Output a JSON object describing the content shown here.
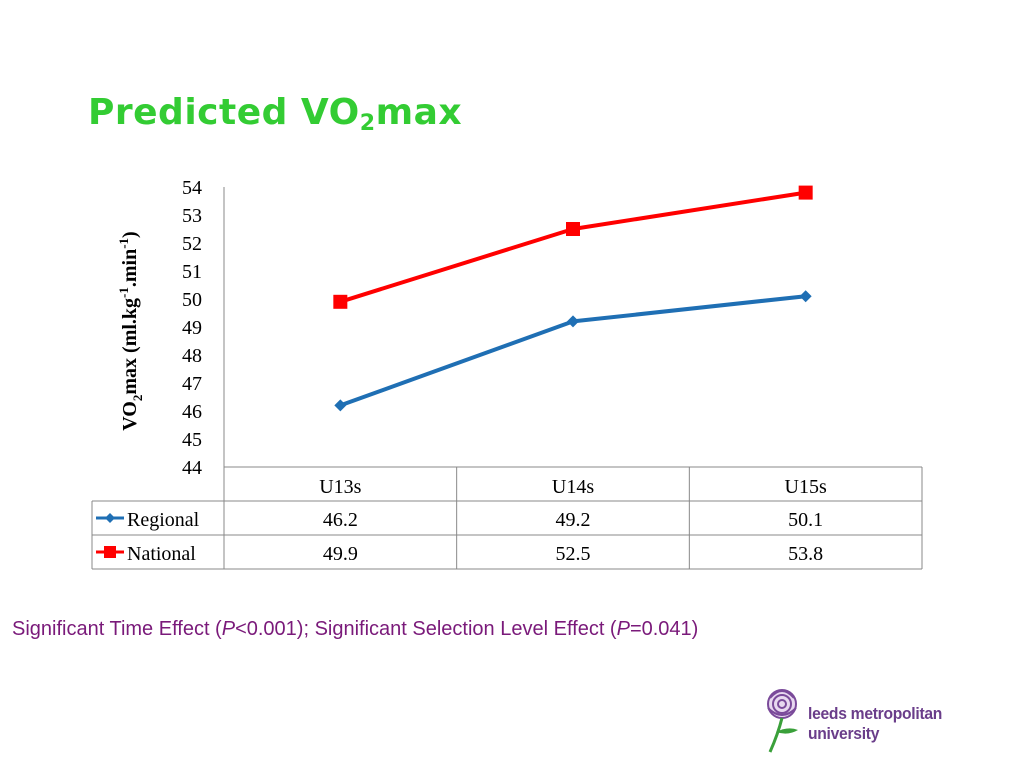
{
  "title": {
    "text_main": "Predicted VO",
    "text_sub": "2",
    "text_tail": "max"
  },
  "footer": {
    "sig_text_1": "Significant Time Effect (",
    "sig_p1_symbol": "P",
    "sig_text_2": "<0.001); Significant Selection Level Effect (",
    "sig_p2_symbol": "P",
    "sig_text_3": "=0.041)"
  },
  "logo": {
    "text": "leeds metropolitan university",
    "icon": "rose-icon"
  },
  "chart_data": {
    "type": "line",
    "categories": [
      "U13s",
      "U14s",
      "U15s"
    ],
    "series": [
      {
        "name": "Regional",
        "values": [
          46.2,
          49.2,
          50.1
        ],
        "color": "#1f6fb4",
        "marker": "diamond"
      },
      {
        "name": "National",
        "values": [
          49.9,
          52.5,
          53.8
        ],
        "color": "#ff0000",
        "marker": "square"
      }
    ],
    "ylabel": {
      "main": "VO",
      "sub": "2",
      "mid": "max (ml.kg",
      "sup1": "-1",
      "mid2": ".min",
      "sup2": "-1",
      "end": ")"
    },
    "ylim": [
      44,
      54
    ],
    "yticks": [
      "44",
      "45",
      "46",
      "47",
      "48",
      "49",
      "50",
      "51",
      "52",
      "53",
      "54"
    ],
    "data_table": true,
    "table_values": [
      [
        "46.2",
        "49.2",
        "50.1"
      ],
      [
        "49.9",
        "52.5",
        "53.8"
      ]
    ],
    "grid": false,
    "legend": "data-table"
  }
}
